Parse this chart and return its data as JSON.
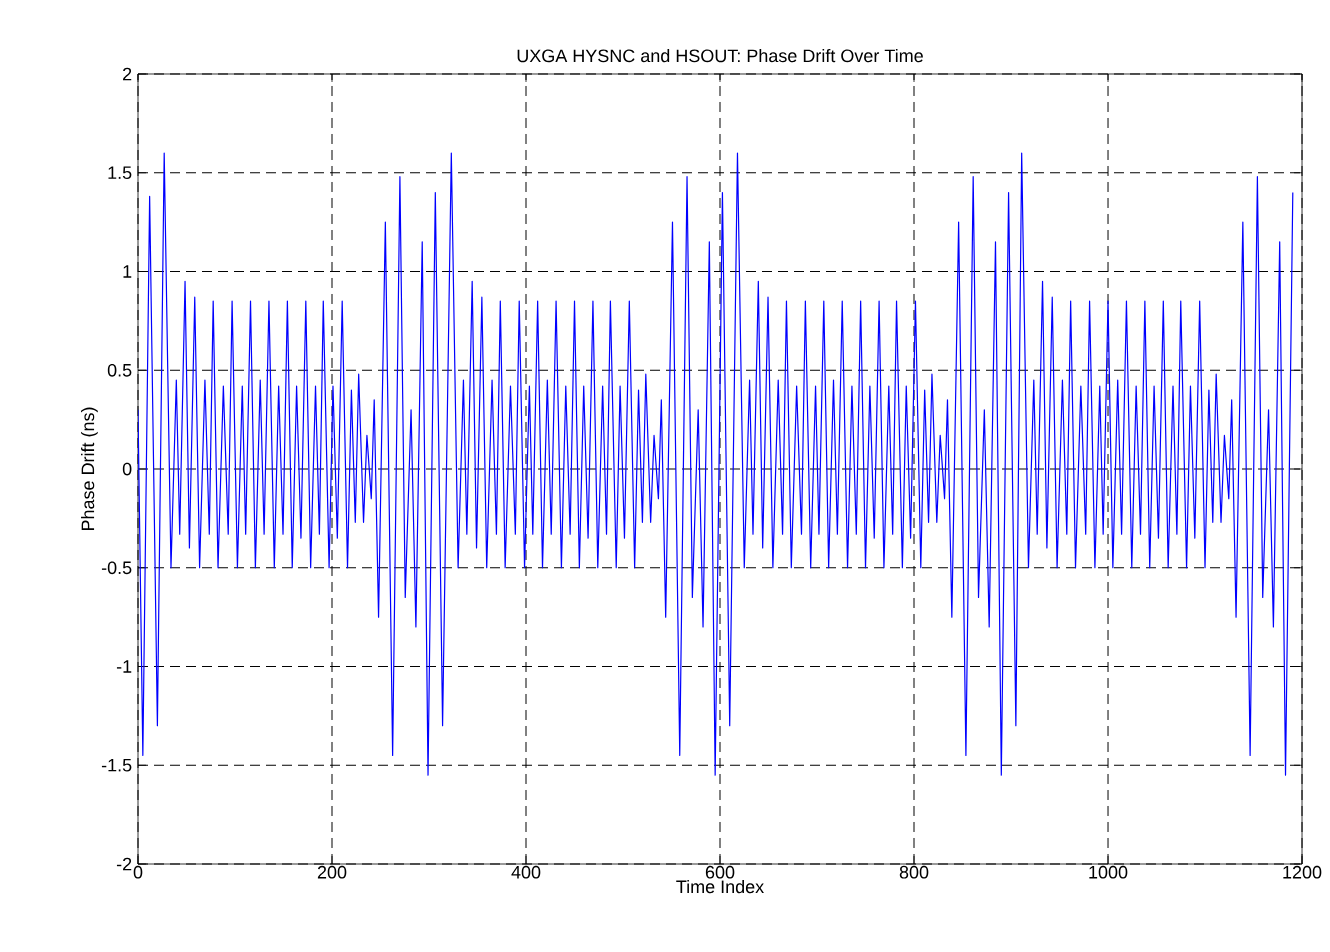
{
  "chart_data": {
    "type": "line",
    "title": "UXGA HYSNC and HSOUT: Phase Drift Over Time",
    "xlabel": "Time Index",
    "ylabel": "Phase Drift (ns)",
    "xlim": [
      0,
      1200
    ],
    "ylim": [
      -2,
      2
    ],
    "xticks": [
      0,
      200,
      400,
      600,
      800,
      1000,
      1200
    ],
    "yticks": [
      -2,
      -1.5,
      -1,
      -0.5,
      0,
      0.5,
      1,
      1.5,
      2
    ],
    "grid": true,
    "marker": "none",
    "line_style": "solid",
    "color": "#0000ff",
    "x": [
      0,
      5,
      12,
      20,
      27,
      34,
      39.5,
      43,
      48.5,
      53,
      58.5,
      63.5,
      69,
      73.5,
      77.5,
      82.5,
      88,
      93,
      97,
      102.5,
      107.5,
      111,
      116,
      121,
      126,
      130,
      135,
      140.5,
      145,
      149.5,
      154,
      159,
      163.5,
      168,
      173,
      178,
      183,
      187,
      191,
      197,
      201,
      205.5,
      210.5,
      216,
      220,
      224,
      227.5,
      232.5,
      236,
      240.5,
      243.5,
      248,
      255,
      262.5,
      270,
      275.5,
      281.5,
      286.5,
      293,
      299,
      306.5,
      314,
      323,
      330,
      335.5,
      339,
      344.5,
      349,
      354.5,
      359.5,
      365,
      369.5,
      373.5,
      378.5,
      384,
      389,
      393,
      398.5,
      403.5,
      407,
      412,
      417,
      422,
      426,
      431,
      436.5,
      441,
      445.5,
      450,
      455,
      459.5,
      464,
      469,
      474,
      479,
      483,
      487,
      493,
      497,
      501.5,
      506.5,
      512,
      516,
      520,
      523.5,
      528.5,
      532,
      536.5,
      539.5,
      544,
      551,
      558.5,
      566,
      571.5,
      577.5,
      582.5,
      589,
      595,
      602.5,
      610,
      618,
      625,
      630.5,
      634,
      639.5,
      644,
      649.5,
      654.5,
      660,
      664.5,
      668.5,
      673.5,
      679,
      684,
      688,
      693.5,
      698.5,
      702,
      707,
      712,
      717,
      721,
      726,
      731.5,
      736,
      740.5,
      745,
      750,
      754.5,
      759,
      764,
      769,
      774,
      778,
      782,
      788,
      792,
      796.5,
      801.5,
      807,
      811,
      815,
      818.5,
      823.5,
      827,
      831.5,
      834.5,
      839,
      846,
      853.5,
      861,
      866.5,
      872.5,
      877.5,
      884,
      890,
      897.5,
      905,
      911,
      918,
      923.5,
      927,
      932.5,
      937,
      942.5,
      947.5,
      953,
      957.5,
      961.5,
      966.5,
      972,
      977,
      981,
      986.5,
      991.5,
      995,
      1000,
      1005,
      1010,
      1014,
      1019,
      1024.5,
      1029,
      1033.5,
      1038,
      1043,
      1047.5,
      1052,
      1057,
      1062,
      1067,
      1071,
      1075,
      1081,
      1085,
      1089.5,
      1094.5,
      1100,
      1104,
      1108,
      1111.5,
      1116.5,
      1120,
      1124.5,
      1127.5,
      1132,
      1139,
      1146.5,
      1154,
      1159.5,
      1165.5,
      1170.5,
      1177,
      1183,
      1190.5
    ],
    "values": [
      0.3,
      -1.45,
      1.38,
      -1.3,
      1.6,
      -0.5,
      0.45,
      -0.33,
      0.95,
      -0.4,
      0.87,
      -0.5,
      0.45,
      -0.33,
      0.85,
      -0.5,
      0.42,
      -0.33,
      0.85,
      -0.5,
      0.42,
      -0.33,
      0.85,
      -0.5,
      0.45,
      -0.33,
      0.85,
      -0.5,
      0.42,
      -0.33,
      0.85,
      -0.5,
      0.42,
      -0.35,
      0.85,
      -0.5,
      0.42,
      -0.33,
      0.85,
      -0.5,
      0.42,
      -0.35,
      0.85,
      -0.5,
      0.4,
      -0.27,
      0.48,
      -0.27,
      0.17,
      -0.15,
      0.35,
      -0.75,
      1.25,
      -1.45,
      1.48,
      -0.65,
      0.3,
      -0.8,
      1.15,
      -1.55,
      1.4,
      -1.3,
      1.6,
      -0.5,
      0.45,
      -0.33,
      0.95,
      -0.4,
      0.87,
      -0.5,
      0.45,
      -0.33,
      0.85,
      -0.5,
      0.42,
      -0.33,
      0.85,
      -0.5,
      0.42,
      -0.33,
      0.85,
      -0.5,
      0.45,
      -0.33,
      0.85,
      -0.5,
      0.42,
      -0.33,
      0.85,
      -0.5,
      0.42,
      -0.35,
      0.85,
      -0.5,
      0.42,
      -0.33,
      0.85,
      -0.5,
      0.42,
      -0.35,
      0.85,
      -0.5,
      0.4,
      -0.27,
      0.48,
      -0.27,
      0.17,
      -0.15,
      0.35,
      -0.75,
      1.25,
      -1.45,
      1.48,
      -0.65,
      0.3,
      -0.8,
      1.15,
      -1.55,
      1.4,
      -1.3,
      1.6,
      -0.5,
      0.45,
      -0.33,
      0.95,
      -0.4,
      0.87,
      -0.5,
      0.45,
      -0.33,
      0.85,
      -0.5,
      0.42,
      -0.33,
      0.85,
      -0.5,
      0.42,
      -0.33,
      0.85,
      -0.5,
      0.45,
      -0.33,
      0.85,
      -0.5,
      0.42,
      -0.33,
      0.85,
      -0.5,
      0.42,
      -0.35,
      0.85,
      -0.5,
      0.42,
      -0.33,
      0.85,
      -0.5,
      0.42,
      -0.35,
      0.85,
      -0.5,
      0.4,
      -0.27,
      0.48,
      -0.27,
      0.17,
      -0.15,
      0.35,
      -0.75,
      1.25,
      -1.45,
      1.48,
      -0.65,
      0.3,
      -0.8,
      1.15,
      -1.55,
      1.4,
      -1.3,
      1.6,
      -0.5,
      0.45,
      -0.33,
      0.95,
      -0.4,
      0.87,
      -0.5,
      0.45,
      -0.33,
      0.85,
      -0.5,
      0.42,
      -0.33,
      0.85,
      -0.5,
      0.42,
      -0.33,
      0.85,
      -0.5,
      0.45,
      -0.33,
      0.85,
      -0.5,
      0.42,
      -0.33,
      0.85,
      -0.5,
      0.42,
      -0.35,
      0.85,
      -0.5,
      0.42,
      -0.33,
      0.85,
      -0.5,
      0.42,
      -0.35,
      0.85,
      -0.5,
      0.4,
      -0.27,
      0.48,
      -0.27,
      0.17,
      -0.15,
      0.35,
      -0.75,
      1.25,
      -1.45,
      1.48,
      -0.65,
      0.3,
      -0.8,
      1.15,
      -1.55,
      1.4
    ]
  }
}
